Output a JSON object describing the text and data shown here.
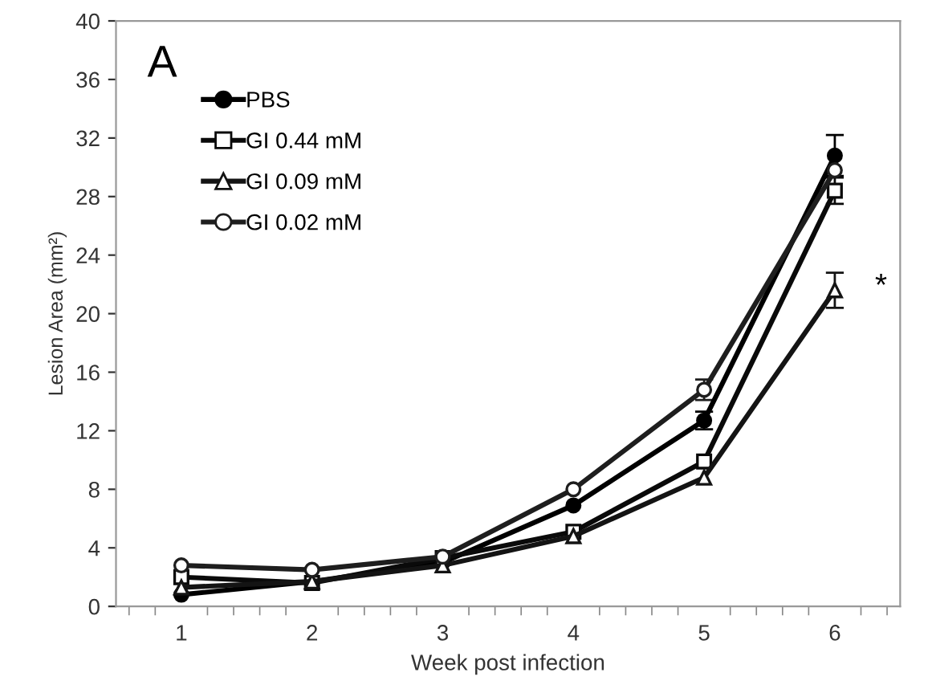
{
  "chart_data": {
    "type": "line",
    "xlabel": "Week post infection",
    "ylabel": "Lesion Area (mm²)",
    "categories": [
      "1",
      "2",
      "3",
      "4",
      "5",
      "6"
    ],
    "series": [
      {
        "name": "PBS",
        "color": "#000000",
        "marker": "circle",
        "values": [
          0.8,
          1.7,
          3.0,
          6.9,
          12.7,
          30.8
        ],
        "errors": [
          null,
          null,
          null,
          null,
          0.6,
          1.4
        ]
      },
      {
        "name": "GI 0.44 mM",
        "color": "#0a0a0a",
        "marker": "square",
        "values": [
          2.0,
          1.6,
          3.3,
          5.1,
          9.9,
          28.4
        ],
        "errors": [
          null,
          null,
          null,
          null,
          null,
          0.9
        ]
      },
      {
        "name": "GI 0.09 mM",
        "color": "#141414",
        "marker": "triangle",
        "values": [
          1.3,
          1.7,
          2.8,
          4.8,
          8.8,
          21.6
        ],
        "errors": [
          null,
          null,
          null,
          null,
          null,
          1.2
        ]
      },
      {
        "name": "GI 0.02 mM",
        "color": "#1e1e1e",
        "marker": "circle",
        "values": [
          2.8,
          2.5,
          3.4,
          8.0,
          14.8,
          29.8
        ],
        "errors": [
          null,
          null,
          null,
          null,
          0.7,
          null
        ]
      }
    ],
    "ylim": [
      0,
      40
    ],
    "yticks": [
      0,
      4,
      8,
      12,
      16,
      20,
      24,
      28,
      32,
      36,
      40
    ],
    "grid": false,
    "legend": "top left",
    "line_style": "solid",
    "annotations": [
      "A",
      {
        "text": "*",
        "x": "6",
        "y": 21.8
      }
    ]
  }
}
